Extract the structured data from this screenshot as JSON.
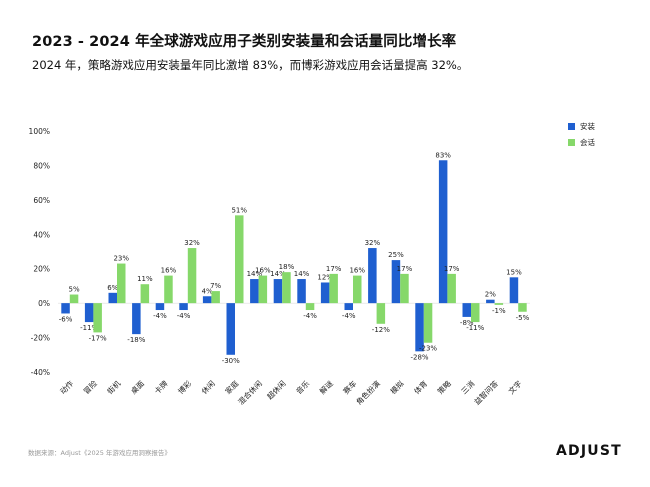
{
  "header": {
    "title": "2023 - 2024 年全球游戏应用子类别安装量和会话量同比增长率",
    "subtitle": "2024 年，策略游戏应用安装量年同比激增 83%，而博彩游戏应用会话量提高 32%。"
  },
  "footer": {
    "source": "数据来源：Adjust《2025 年游戏应用洞察报告》",
    "logo": "ADJUST"
  },
  "colors": {
    "install": "#1F5FD0",
    "session": "#86D86A"
  },
  "chart_data": {
    "type": "bar",
    "categories": [
      "动作",
      "冒险",
      "街机",
      "桌面",
      "卡牌",
      "博彩",
      "休闲",
      "家庭",
      "混合休闲",
      "超休闲",
      "音乐",
      "解谜",
      "赛车",
      "角色扮演",
      "模拟",
      "体育",
      "策略",
      "三消",
      "益智问答",
      "文字"
    ],
    "series": [
      {
        "name": "安装",
        "values": [
          -6,
          -11,
          6,
          -18,
          -4,
          -4,
          4,
          -30,
          14,
          14,
          14,
          12,
          -4,
          32,
          25,
          -28,
          83,
          -8,
          2,
          15
        ],
        "labels": [
          "-6%",
          "-11%",
          "6%",
          "-18%",
          "-4%",
          "-4%",
          "4%",
          "-30%",
          "14%",
          "14%",
          "14%",
          "12%",
          "-4%",
          "32%",
          "25%",
          "-28%",
          "83%",
          "-8%",
          "2%",
          "15%"
        ]
      },
      {
        "name": "会话",
        "values": [
          5,
          -17,
          23,
          11,
          16,
          32,
          7,
          51,
          16,
          18,
          -4,
          17,
          16,
          -12,
          17,
          -23,
          17,
          -11,
          -1,
          -5
        ],
        "labels": [
          "5%",
          "-17%",
          "23%",
          "11%",
          "16%",
          "32%",
          "7%",
          "51%",
          "16%",
          "18%",
          "-4%",
          "17%",
          "16%",
          "-12%",
          "17%",
          "-23%",
          "17%",
          "-11%",
          "-1%",
          "-5%"
        ]
      }
    ],
    "ylim": [
      -40,
      100
    ],
    "yticks": [
      "100%",
      "80%",
      "60%",
      "40%",
      "20%",
      "0%",
      "-20%",
      "-40%"
    ],
    "legend_position": "right"
  }
}
